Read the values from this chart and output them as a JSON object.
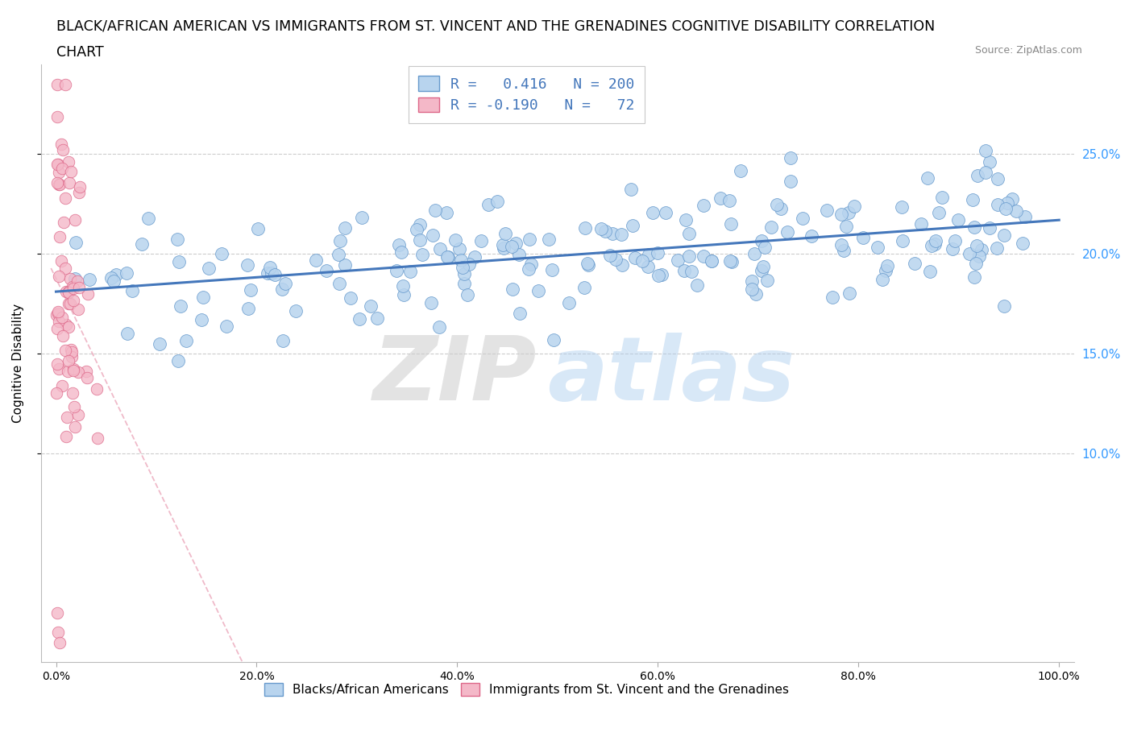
{
  "title_line1": "BLACK/AFRICAN AMERICAN VS IMMIGRANTS FROM ST. VINCENT AND THE GRENADINES COGNITIVE DISABILITY CORRELATION",
  "title_line2": "CHART",
  "source": "Source: ZipAtlas.com",
  "ylabel": "Cognitive Disability",
  "blue_R": 0.416,
  "blue_N": 200,
  "pink_R": -0.19,
  "pink_N": 72,
  "blue_label": "Blacks/African Americans",
  "pink_label": "Immigrants from St. Vincent and the Grenadines",
  "blue_color": "#b8d4ee",
  "pink_color": "#f4b8c8",
  "blue_edge_color": "#6699cc",
  "pink_edge_color": "#dd6688",
  "blue_line_color": "#4477bb",
  "pink_line_color": "#dd6688",
  "right_tick_color": "#3399ff",
  "watermark_zip_color": "#cccccc",
  "watermark_atlas_color": "#aaccee",
  "seed": 42,
  "blue_dot_size": 130,
  "pink_dot_size": 110
}
